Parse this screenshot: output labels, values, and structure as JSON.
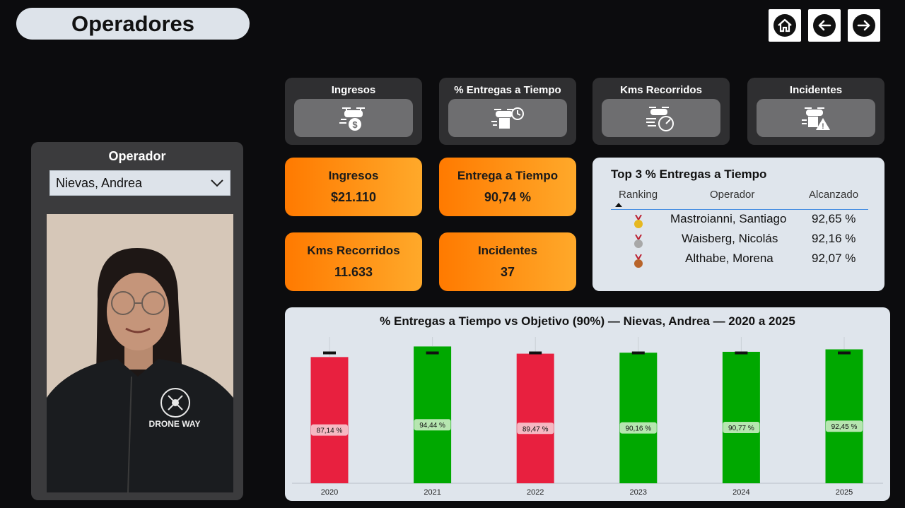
{
  "page": {
    "title": "Operadores"
  },
  "nav": {
    "home_icon": "home-icon",
    "back_icon": "arrow-left-icon",
    "forward_icon": "arrow-right-icon"
  },
  "metric_tiles": [
    {
      "label": "Ingresos",
      "icon": "drone-money-icon"
    },
    {
      "label": "% Entregas a Tiempo",
      "icon": "drone-clock-icon"
    },
    {
      "label": "Kms Recorridos",
      "icon": "drone-speed-icon"
    },
    {
      "label": "Incidentes",
      "icon": "drone-warning-icon"
    }
  ],
  "operator_panel": {
    "label": "Operador",
    "selected": "Nievas, Andrea",
    "photo_logo": "DRONE WAY"
  },
  "kpis": [
    {
      "label": "Ingresos",
      "value": "$21.110"
    },
    {
      "label": "Entrega a Tiempo",
      "value": "90,74 %"
    },
    {
      "label": "Kms Recorridos",
      "value": "11.633"
    },
    {
      "label": "Incidentes",
      "value": "37"
    }
  ],
  "top3": {
    "title": "Top 3 % Entregas a Tiempo",
    "headers": [
      "Ranking",
      "Operador",
      "Alcanzado"
    ],
    "rows": [
      {
        "medal": "gold-medal-icon",
        "operador": "Mastroianni, Santiago",
        "alcanzado": "92,65 %"
      },
      {
        "medal": "silver-medal-icon",
        "operador": "Waisberg, Nicolás",
        "alcanzado": "92,16 %"
      },
      {
        "medal": "bronze-medal-icon",
        "operador": "Althabe, Morena",
        "alcanzado": "92,07 %"
      }
    ]
  },
  "colors": {
    "above_target": "#00a800",
    "below_target": "#e8203f",
    "kpi_start": "#ff7a00",
    "kpi_end": "#ffa92a"
  },
  "chart_data": {
    "type": "bar",
    "title": "% Entregas a Tiempo vs Objetivo (90%) — Nievas, Andrea — 2020 a 2025",
    "categories": [
      "2020",
      "2021",
      "2022",
      "2023",
      "2024",
      "2025"
    ],
    "series": [
      {
        "values": [
          87.14,
          94.44,
          89.47,
          90.16,
          90.77,
          92.45
        ]
      }
    ],
    "value_labels": [
      "87,14 %",
      "94,44 %",
      "89,47 %",
      "90,16 %",
      "90,77 %",
      "92,45 %"
    ],
    "target": 90,
    "ylim": [
      0,
      100
    ],
    "grid": false
  }
}
